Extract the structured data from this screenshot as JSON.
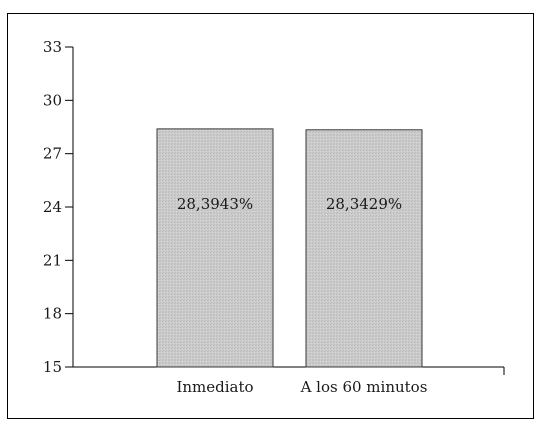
{
  "chart_data": {
    "type": "bar",
    "categories": [
      "Inmediato",
      "A los 60 minutos"
    ],
    "values": [
      28.3943,
      28.3429
    ],
    "data_labels": [
      "28,3943%",
      "28,3429%"
    ],
    "yticks": [
      15,
      18,
      21,
      24,
      27,
      30,
      33
    ],
    "ylim": [
      15,
      33
    ],
    "title": "",
    "xlabel": "",
    "ylabel": "",
    "grid": false,
    "colors": {
      "bar_fill": "#c9c9c9",
      "bar_stroke": "#3a3a3a"
    }
  }
}
